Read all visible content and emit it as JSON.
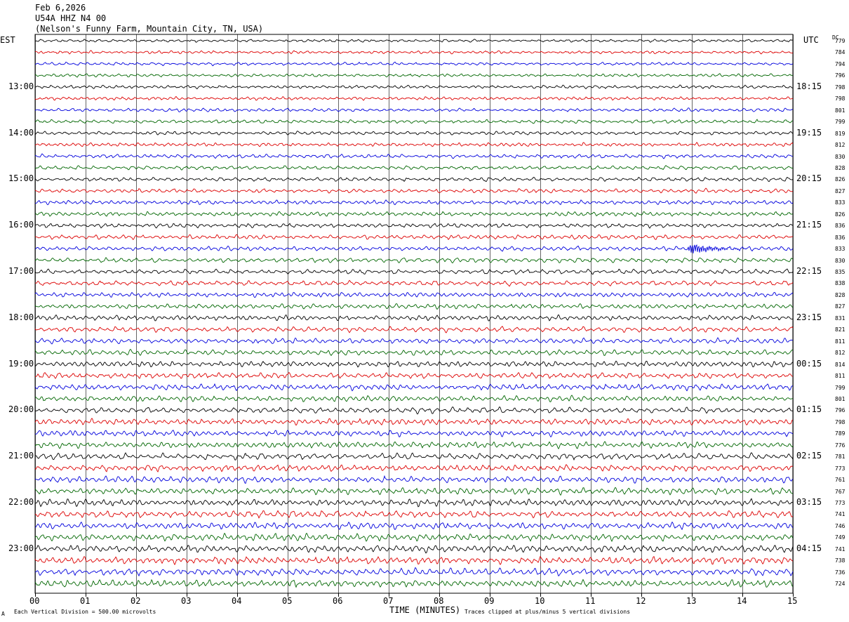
{
  "header": {
    "date": "Feb 6,2026",
    "station": "U54A HHZ N4 00",
    "location": "(Nelson's Funny Farm, Mountain City, TN, USA)"
  },
  "labels": {
    "left_tz": "EST",
    "right_tz": "UTC",
    "dc_header": "DC",
    "xlabel": "TIME (MINUTES)",
    "scale_note": "Each Vertical Division = 500.00 microvolts",
    "clip_note": "Traces clipped at plus/minus 5 vertical divisions",
    "corner_mark": "A"
  },
  "colors": {
    "trace_cycle": [
      "#000000",
      "#dd0000",
      "#0000dd",
      "#006600"
    ],
    "grid": "#000000"
  },
  "chart_data": {
    "type": "line",
    "title": "",
    "xlabel": "TIME (MINUTES)",
    "xlim": [
      0,
      15
    ],
    "x_ticks": [
      "00",
      "01",
      "02",
      "03",
      "04",
      "05",
      "06",
      "07",
      "08",
      "09",
      "10",
      "11",
      "12",
      "13",
      "14",
      "15"
    ],
    "trace_count": 48,
    "traces_per_hour": 4,
    "left_hour_labels": [
      "13:00",
      "14:00",
      "15:00",
      "16:00",
      "17:00",
      "18:00",
      "19:00",
      "20:00",
      "21:00",
      "22:00",
      "23:00"
    ],
    "right_hour_labels": [
      "18:15",
      "19:15",
      "20:15",
      "21:15",
      "22:15",
      "23:15",
      "00:15",
      "01:15",
      "02:15",
      "03:15",
      "04:15"
    ],
    "dc_offsets": [
      779,
      784,
      794,
      796,
      798,
      798,
      801,
      799,
      819,
      812,
      830,
      828,
      826,
      827,
      833,
      826,
      836,
      836,
      833,
      830,
      835,
      838,
      828,
      827,
      831,
      821,
      811,
      812,
      814,
      811,
      799,
      801,
      796,
      798,
      789,
      776,
      781,
      773,
      761,
      767,
      773,
      741,
      746,
      749,
      741,
      738,
      736,
      724
    ],
    "events": [
      {
        "trace": 18,
        "minute": 13.0,
        "label": "burst"
      }
    ]
  }
}
